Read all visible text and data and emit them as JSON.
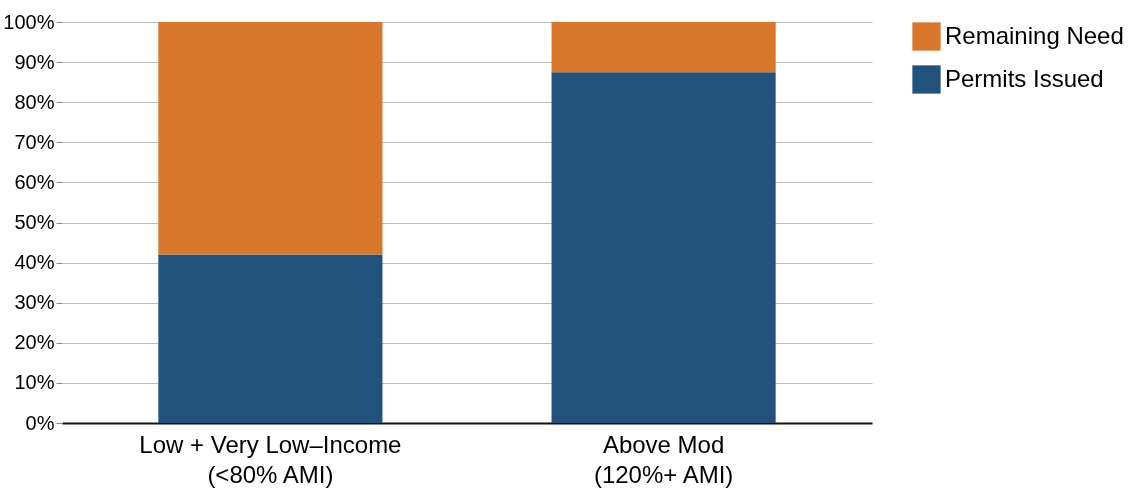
{
  "chart_data": {
    "type": "bar",
    "stacked": true,
    "categories": [
      "Low + Very Low–Income\n(<80% AMI)",
      "Above Mod\n(120%+ AMI)"
    ],
    "series": [
      {
        "name": "Permits Issued",
        "color": "#22527c",
        "values": [
          42,
          87.5
        ]
      },
      {
        "name": "Remaining Need",
        "color": "#d8762c",
        "values": [
          58,
          12.5
        ]
      }
    ],
    "ylim": [
      0,
      100
    ],
    "yticks": [
      {
        "value": 0,
        "label": "0%"
      },
      {
        "value": 10,
        "label": "10%"
      },
      {
        "value": 20,
        "label": "20%"
      },
      {
        "value": 30,
        "label": "30%"
      },
      {
        "value": 40,
        "label": "40%"
      },
      {
        "value": 50,
        "label": "50%"
      },
      {
        "value": 60,
        "label": "60%"
      },
      {
        "value": 70,
        "label": "70%"
      },
      {
        "value": 80,
        "label": "80%"
      },
      {
        "value": 90,
        "label": "90%"
      },
      {
        "value": 100,
        "label": "100%"
      }
    ],
    "grid": "y",
    "legend": "right"
  }
}
